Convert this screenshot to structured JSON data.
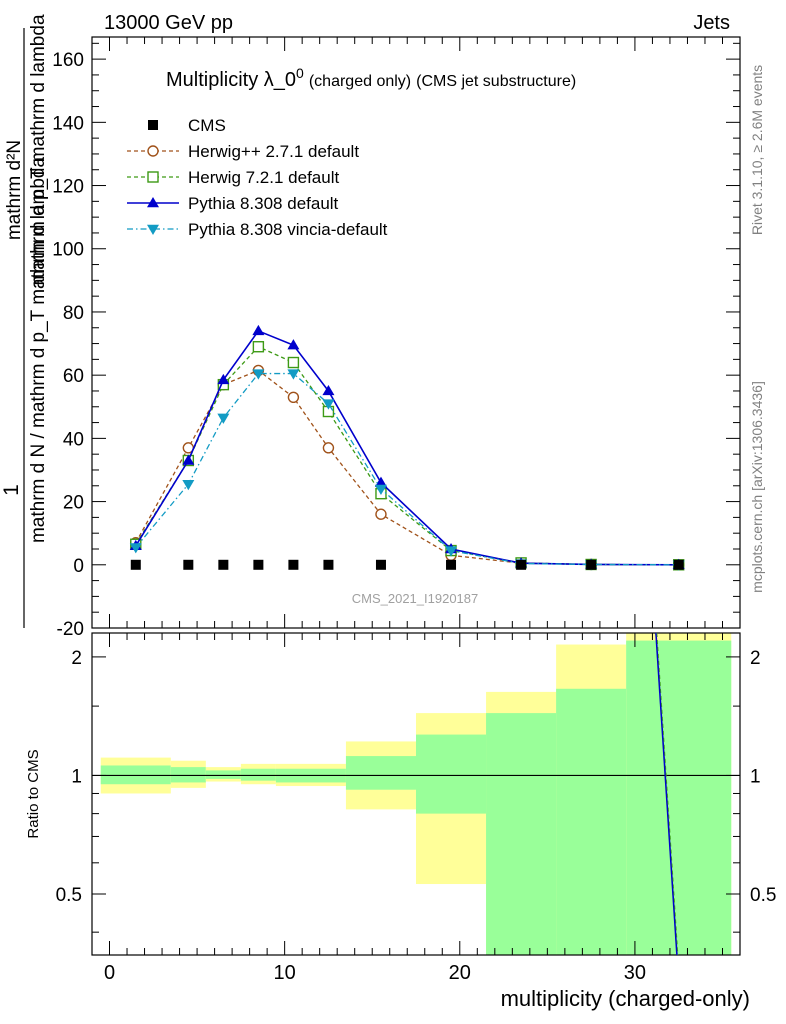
{
  "header": {
    "left_label": "13000 GeV pp",
    "right_label": "Jets"
  },
  "side_labels": {
    "rivet": "Rivet 3.1.10, ≥ 2.6M events",
    "mcplots": "mcplots.cern.ch [arXiv:1306.3436]"
  },
  "chart_data": [
    {
      "type": "line",
      "panel": "main",
      "title": "Multiplicity λ_0^0",
      "title_main": "Multiplicity λ_0",
      "title_sup": "0",
      "title_suffix1": "(charged only)",
      "title_suffix2": "(CMS jet substructure)",
      "watermark": "CMS_2021_I1920187",
      "ylabel_numerator": "1",
      "ylabel_denominator": "mathrm d N / mathrm d p_T mathrm d lambda",
      "ylabel_top": "mathrm d²N",
      "ylabel_top_denominator": "mathrm d p_T mathrm d lambda",
      "xlim": [
        -1,
        36
      ],
      "ylim": [
        -20,
        167
      ],
      "yticks": [
        -20,
        0,
        20,
        40,
        60,
        80,
        100,
        120,
        140,
        160
      ],
      "x": [
        1.5,
        4.5,
        6.5,
        8.5,
        10.5,
        12.5,
        15.5,
        19.5,
        23.5,
        27.5,
        32.5
      ],
      "series": [
        {
          "name": "CMS",
          "color": "#000000",
          "marker": "square-filled",
          "style": "none",
          "values": [
            0,
            0,
            0,
            0,
            0,
            0,
            0,
            0,
            0,
            0,
            0
          ]
        },
        {
          "name": "Herwig++ 2.7.1 default",
          "color": "#a0521a",
          "marker": "circle-open",
          "style": "dashed",
          "values": [
            7,
            37,
            57,
            61.5,
            53,
            37,
            16,
            3,
            0.5,
            0.1,
            0
          ]
        },
        {
          "name": "Herwig 7.2.1 default",
          "color": "#3d9a15",
          "marker": "square-open",
          "style": "dashed",
          "values": [
            6.5,
            33,
            57,
            69,
            64,
            48.5,
            22.5,
            4.5,
            0.6,
            0.1,
            0
          ]
        },
        {
          "name": "Pythia 8.308 default",
          "color": "#0000cc",
          "marker": "triangle-up-filled",
          "style": "solid",
          "values": [
            6,
            33,
            58.5,
            74,
            69.5,
            55,
            26,
            5,
            0.5,
            0.1,
            0
          ]
        },
        {
          "name": "Pythia 8.308 vincia-default",
          "color": "#129bc4",
          "marker": "triangle-down-filled",
          "style": "dashdot",
          "values": [
            5.5,
            25.5,
            46.5,
            60.5,
            60.5,
            51,
            24,
            4.5,
            0.4,
            0.1,
            0
          ]
        }
      ]
    },
    {
      "type": "area",
      "panel": "ratio",
      "ylabel": "Ratio to CMS",
      "xlabel": "multiplicity (charged-only)",
      "ylim": [
        0.35,
        2.3
      ],
      "yticks": [
        0.5,
        1,
        2
      ],
      "xticks": [
        0,
        10,
        20,
        30
      ],
      "reference_line": 1,
      "bins": [
        {
          "lo": -0.5,
          "hi": 3.5,
          "green": [
            0.95,
            1.06
          ],
          "yellow": [
            0.9,
            1.11
          ]
        },
        {
          "lo": 3.5,
          "hi": 5.5,
          "green": [
            0.96,
            1.05
          ],
          "yellow": [
            0.93,
            1.09
          ]
        },
        {
          "lo": 5.5,
          "hi": 7.5,
          "green": [
            0.98,
            1.03
          ],
          "yellow": [
            0.965,
            1.05
          ]
        },
        {
          "lo": 7.5,
          "hi": 9.5,
          "green": [
            0.97,
            1.04
          ],
          "yellow": [
            0.95,
            1.07
          ]
        },
        {
          "lo": 9.5,
          "hi": 13.5,
          "green": [
            0.96,
            1.04
          ],
          "yellow": [
            0.94,
            1.07
          ]
        },
        {
          "lo": 13.5,
          "hi": 17.5,
          "green": [
            0.92,
            1.12
          ],
          "yellow": [
            0.82,
            1.22
          ]
        },
        {
          "lo": 17.5,
          "hi": 21.5,
          "green": [
            0.8,
            1.27
          ],
          "yellow": [
            0.53,
            1.44
          ]
        },
        {
          "lo": 21.5,
          "hi": 25.5,
          "green": [
            0.35,
            1.44
          ],
          "yellow": [
            0.35,
            1.63
          ]
        },
        {
          "lo": 25.5,
          "hi": 29.5,
          "green": [
            0.35,
            1.66
          ],
          "yellow": [
            0.35,
            2.15
          ]
        },
        {
          "lo": 29.5,
          "hi": 35.5,
          "green": [
            0.35,
            2.2
          ],
          "yellow": [
            0.35,
            2.3
          ]
        }
      ],
      "mc_line": {
        "x": [
          31.2,
          32.4
        ],
        "y": [
          2.3,
          0.35
        ],
        "color": "#0000cc"
      }
    }
  ]
}
